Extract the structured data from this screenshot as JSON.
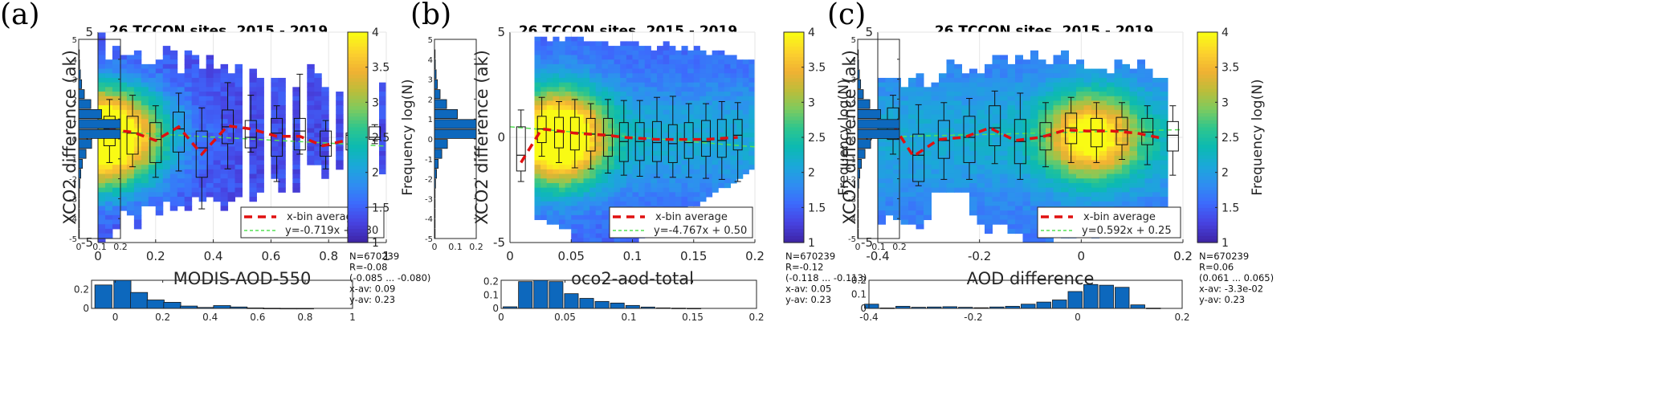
{
  "figure": {
    "colormap": [
      "#3e26a8",
      "#4743e2",
      "#3d6afd",
      "#2f8ef1",
      "#1ba8d9",
      "#0cbab2",
      "#2dc58e",
      "#7ccb5f",
      "#bcbd3a",
      "#f0b133",
      "#fcd12e",
      "#f9fb14"
    ],
    "bar_color": "#0d68bd",
    "avg_line_color": "#e01010",
    "fit_line_color": "#55e055"
  },
  "chart_data": [
    {
      "panel_label": "(a)",
      "type": "heatmap",
      "title": "26 TCCON sites, 2015 - 2019",
      "xlabel": "MODIS-AOD-550",
      "ylabel": "XCO2 difference (ak)",
      "xlim": [
        0,
        1
      ],
      "ylim": [
        -5,
        5
      ],
      "xticks": [
        "0",
        "0.2",
        "0.4",
        "0.6",
        "0.8",
        "1"
      ],
      "yticks": [
        "-5",
        "0",
        "5"
      ],
      "grid": true,
      "colorbar": {
        "label": "Frequency log(N)",
        "range": [
          1,
          4
        ],
        "ticks": [
          "1",
          "1.5",
          "2",
          "2.5",
          "3",
          "3.5",
          "4"
        ]
      },
      "legend": {
        "placement": "bottom-right",
        "entries": [
          "x-bin average",
          "y=-0.719x + 0.30"
        ]
      },
      "fit": {
        "slope": -0.719,
        "intercept": 0.3
      },
      "x_bin_average": {
        "x": [
          0.04,
          0.12,
          0.2,
          0.28,
          0.36,
          0.45,
          0.53,
          0.62,
          0.7,
          0.78,
          0.86,
          0.93
        ],
        "y": [
          0.35,
          0.25,
          -0.15,
          0.5,
          -0.8,
          0.55,
          0.4,
          0.05,
          0.05,
          -0.4,
          -0.15,
          0.15
        ]
      },
      "boxes": [
        {
          "x": 0.04,
          "wlo": -1.2,
          "q1": -0.4,
          "med": 0.4,
          "q3": 1.0,
          "whi": 1.8
        },
        {
          "x": 0.12,
          "wlo": -1.4,
          "q1": -0.8,
          "med": 0.2,
          "q3": 1.0,
          "whi": 2.0
        },
        {
          "x": 0.2,
          "wlo": -1.9,
          "q1": -1.2,
          "med": -0.1,
          "q3": 0.7,
          "whi": 1.5
        },
        {
          "x": 0.28,
          "wlo": -1.6,
          "q1": -0.7,
          "med": 0.4,
          "q3": 1.2,
          "whi": 2.1
        },
        {
          "x": 0.36,
          "wlo": -3.4,
          "q1": -1.9,
          "med": -0.5,
          "q3": 0.3,
          "whi": 1.4
        },
        {
          "x": 0.45,
          "wlo": -1.5,
          "q1": -0.3,
          "med": 0.5,
          "q3": 1.3,
          "whi": 2.6
        },
        {
          "x": 0.53,
          "wlo": -0.7,
          "q1": -0.5,
          "med": 0.0,
          "q3": 0.8,
          "whi": 2.0
        },
        {
          "x": 0.62,
          "wlo": -2.1,
          "q1": -0.9,
          "med": 0.2,
          "q3": 0.9,
          "whi": 1.5
        },
        {
          "x": 0.7,
          "wlo": -0.8,
          "q1": -0.6,
          "med": 0.3,
          "q3": 0.9,
          "whi": 3.0
        },
        {
          "x": 0.79,
          "wlo": -1.5,
          "q1": -0.9,
          "med": -0.4,
          "q3": 0.3,
          "whi": 0.8
        },
        {
          "x": 0.88,
          "wlo": -1.3,
          "q1": -0.6,
          "med": 0.1,
          "q3": 0.2,
          "whi": 1.1
        },
        {
          "x": 0.96,
          "wlo": -0.3,
          "q1": -0.1,
          "med": 0.0,
          "q3": 0.5,
          "whi": 0.6
        }
      ],
      "y_hist": {
        "bins": [
          4.5,
          3.5,
          2.5,
          1.5,
          0.5,
          -0.5,
          -1.5,
          -2.5,
          -3.5,
          -4.5,
          3.75,
          2.75,
          1.75,
          0.75,
          -0.25,
          -1.25,
          -2.25,
          -3.25,
          -4.25,
          4.25
        ],
        "y": [
          4.25,
          3.75,
          3.25,
          2.75,
          2.25,
          1.75,
          1.25,
          0.75,
          0.25,
          -0.25,
          -0.75,
          -1.25,
          -1.75,
          -2.25,
          -2.75,
          -3.25,
          -3.75,
          -4.25,
          -4.75
        ],
        "values": [
          0.002,
          0.004,
          0.008,
          0.014,
          0.027,
          0.058,
          0.11,
          0.2,
          0.2,
          0.062,
          0.035,
          0.018,
          0.01,
          0.005,
          0.002,
          0.001,
          0.001,
          0.0005,
          0.0
        ],
        "xlim": [
          0,
          0.2
        ],
        "xticks": [
          "0",
          "0.1",
          "0.2"
        ],
        "yticks": [
          "5",
          "4",
          "3",
          "2",
          "1",
          "0",
          "-1",
          "-2",
          "-3",
          "-4",
          "-5"
        ]
      },
      "x_hist": {
        "x": [
          -0.05,
          0.03,
          0.1,
          0.17,
          0.24,
          0.31,
          0.38,
          0.45,
          0.52,
          0.59,
          0.66,
          0.73,
          0.8,
          0.87,
          0.94
        ],
        "values": [
          0.25,
          0.3,
          0.17,
          0.09,
          0.065,
          0.025,
          0.01,
          0.03,
          0.015,
          0.005,
          0.002,
          0.001,
          0.001,
          0.0,
          0.0
        ],
        "xlim": [
          -0.1,
          1
        ],
        "ylim": [
          0,
          0.3
        ],
        "xticks": [
          "0",
          "0.2",
          "0.4",
          "0.6",
          "0.8",
          "1"
        ],
        "yticks": [
          "0",
          "0.2"
        ]
      },
      "stats": [
        "N=670239",
        "R=-0.08",
        "(-0.085 ... -0.080)",
        "x-av: 0.09",
        "y-av: 0.23"
      ]
    },
    {
      "panel_label": "(b)",
      "type": "heatmap",
      "title": "26 TCCON sites, 2015 - 2019",
      "xlabel": "oco2-aod-total",
      "ylabel": "XCO2 difference (ak)",
      "xlim": [
        0,
        0.2
      ],
      "ylim": [
        -5,
        5
      ],
      "xticks": [
        "0",
        "0.05",
        "0.1",
        "0.15",
        "0.2"
      ],
      "yticks": [
        "-5",
        "0",
        "5"
      ],
      "grid": true,
      "colorbar": {
        "label": "Frequency log(N)",
        "range": [
          1,
          4
        ],
        "ticks": [
          "1",
          "1.5",
          "2",
          "2.5",
          "3",
          "3.5",
          "4"
        ]
      },
      "legend": {
        "placement": "bottom-right",
        "entries": [
          "x-bin average",
          "y=-4.767x + 0.50"
        ]
      },
      "fit": {
        "slope": -4.767,
        "intercept": 0.5
      },
      "x_bin_average": {
        "x": [
          0.009,
          0.026,
          0.04,
          0.053,
          0.066,
          0.08,
          0.093,
          0.106,
          0.12,
          0.133,
          0.146,
          0.16,
          0.173,
          0.186
        ],
        "y": [
          -1.2,
          0.4,
          0.3,
          0.2,
          0.15,
          0.1,
          0.0,
          -0.05,
          -0.1,
          -0.1,
          -0.1,
          -0.1,
          -0.05,
          0.0
        ]
      },
      "boxes": [
        {
          "x": 0.009,
          "wlo": -2.1,
          "q1": -1.6,
          "med": -0.85,
          "q3": 0.5,
          "whi": 1.3
        },
        {
          "x": 0.026,
          "wlo": -0.9,
          "q1": -0.25,
          "med": 0.4,
          "q3": 1.0,
          "whi": 1.9
        },
        {
          "x": 0.04,
          "wlo": -1.2,
          "q1": -0.5,
          "med": 0.25,
          "q3": 0.95,
          "whi": 1.7
        },
        {
          "x": 0.053,
          "wlo": -1.45,
          "q1": -0.6,
          "med": 0.2,
          "q3": 0.95,
          "whi": 1.8
        },
        {
          "x": 0.066,
          "wlo": -1.5,
          "q1": -0.65,
          "med": 0.15,
          "q3": 0.9,
          "whi": 1.6
        },
        {
          "x": 0.08,
          "wlo": -1.7,
          "q1": -0.9,
          "med": 0.1,
          "q3": 0.9,
          "whi": 1.8
        },
        {
          "x": 0.093,
          "wlo": -1.8,
          "q1": -1.15,
          "med": -0.2,
          "q3": 0.7,
          "whi": 1.75
        },
        {
          "x": 0.106,
          "wlo": -1.85,
          "q1": -1.1,
          "med": -0.2,
          "q3": 0.7,
          "whi": 1.75
        },
        {
          "x": 0.12,
          "wlo": -1.9,
          "q1": -1.15,
          "med": -0.25,
          "q3": 0.75,
          "whi": 1.9
        },
        {
          "x": 0.133,
          "wlo": -1.9,
          "q1": -1.2,
          "med": -0.3,
          "q3": 0.6,
          "whi": 1.95
        },
        {
          "x": 0.146,
          "wlo": -1.9,
          "q1": -1.0,
          "med": -0.25,
          "q3": 0.7,
          "whi": 1.6
        },
        {
          "x": 0.16,
          "wlo": -1.95,
          "q1": -0.9,
          "med": -0.2,
          "q3": 0.8,
          "whi": 1.6
        },
        {
          "x": 0.173,
          "wlo": -2.0,
          "q1": -0.95,
          "med": -0.15,
          "q3": 0.85,
          "whi": 1.7
        },
        {
          "x": 0.186,
          "wlo": -2.1,
          "q1": -0.6,
          "med": 0.1,
          "q3": 0.85,
          "whi": 1.65
        }
      ],
      "y_hist": {
        "y": [
          4.25,
          3.75,
          3.25,
          2.75,
          2.25,
          1.75,
          1.25,
          0.75,
          0.25,
          -0.25,
          -0.75,
          -1.25,
          -1.75,
          -2.25,
          -2.75,
          -3.25,
          -3.75,
          -4.25,
          -4.75
        ],
        "values": [
          0.002,
          0.004,
          0.008,
          0.014,
          0.027,
          0.058,
          0.11,
          0.2,
          0.2,
          0.062,
          0.035,
          0.018,
          0.01,
          0.005,
          0.002,
          0.001,
          0.001,
          0.0005,
          0.0
        ],
        "xlim": [
          0,
          0.2
        ],
        "xticks": [
          "0",
          "0.1",
          "0.2"
        ],
        "yticks": [
          "5",
          "4",
          "3",
          "2",
          "1",
          "0",
          "-1",
          "-2",
          "-3",
          "-4",
          "-5"
        ]
      },
      "x_hist": {
        "x": [
          0.007,
          0.019,
          0.031,
          0.043,
          0.055,
          0.067,
          0.079,
          0.091,
          0.103,
          0.115,
          0.127,
          0.139,
          0.151,
          0.163,
          0.175,
          0.187
        ],
        "values": [
          0.012,
          0.2,
          0.21,
          0.2,
          0.11,
          0.075,
          0.052,
          0.04,
          0.022,
          0.01,
          0.004,
          0.002,
          0.001,
          0.0,
          0.0,
          0.0
        ],
        "xlim": [
          0,
          0.2
        ],
        "ylim": [
          0,
          0.21
        ],
        "xticks": [
          "0",
          "0.05",
          "0.1",
          "0.15",
          "0.2"
        ],
        "yticks": [
          "0",
          "0.1",
          "0.2"
        ]
      },
      "stats": [
        "N=670239",
        "R=-0.12",
        "(-0.118 ... -0.113)",
        "x-av: 0.05",
        "y-av: 0.23"
      ]
    },
    {
      "panel_label": "(c)",
      "type": "heatmap",
      "title": "26 TCCON sites, 2015 - 2019",
      "xlabel": "AOD difference",
      "ylabel": "XCO2 difference (ak)",
      "xlim": [
        -0.4,
        0.2
      ],
      "ylim": [
        -5,
        5
      ],
      "xticks": [
        "-0.4",
        "-0.2",
        "0",
        "0.2"
      ],
      "yticks": [
        "-5",
        "0",
        "5"
      ],
      "grid": true,
      "colorbar": {
        "label": "Frequency log(N)",
        "range": [
          1,
          4
        ],
        "ticks": [
          "1",
          "1.5",
          "2",
          "2.5",
          "3",
          "3.5",
          "4"
        ]
      },
      "legend": {
        "placement": "bottom-right",
        "entries": [
          "x-bin average",
          "y=0.592x + 0.25"
        ]
      },
      "fit": {
        "slope": 0.592,
        "intercept": 0.25
      },
      "x_bin_average": {
        "x": [
          -0.37,
          -0.33,
          -0.28,
          -0.23,
          -0.18,
          -0.13,
          -0.08,
          -0.03,
          0.01,
          0.06,
          0.11,
          0.16
        ],
        "y": [
          0.6,
          -0.9,
          -0.1,
          0.0,
          0.45,
          -0.15,
          0.0,
          0.35,
          0.3,
          0.3,
          0.2,
          -0.05
        ]
      },
      "boxes": [
        {
          "x": -0.37,
          "wlo": -0.8,
          "q1": -0.1,
          "med": 0.6,
          "q3": 1.4,
          "whi": 2.0
        },
        {
          "x": -0.32,
          "wlo": -2.3,
          "q1": -2.1,
          "med": -0.85,
          "q3": 0.15,
          "whi": 1.55
        },
        {
          "x": -0.27,
          "wlo": -2.0,
          "q1": -1.0,
          "med": -0.15,
          "q3": 0.8,
          "whi": 1.65
        },
        {
          "x": -0.22,
          "wlo": -2.0,
          "q1": -1.2,
          "med": 0.0,
          "q3": 1.0,
          "whi": 1.85
        },
        {
          "x": -0.17,
          "wlo": -1.25,
          "q1": -0.4,
          "med": 0.45,
          "q3": 1.5,
          "whi": 2.2
        },
        {
          "x": -0.12,
          "wlo": -2.0,
          "q1": -1.25,
          "med": -0.2,
          "q3": 0.85,
          "whi": 2.1
        },
        {
          "x": -0.07,
          "wlo": -1.4,
          "q1": -0.6,
          "med": 0.05,
          "q3": 0.7,
          "whi": 1.65
        },
        {
          "x": -0.02,
          "wlo": -1.2,
          "q1": -0.3,
          "med": 0.45,
          "q3": 1.15,
          "whi": 1.9
        },
        {
          "x": 0.03,
          "wlo": -1.2,
          "q1": -0.45,
          "med": 0.35,
          "q3": 0.9,
          "whi": 1.65
        },
        {
          "x": 0.08,
          "wlo": -1.05,
          "q1": -0.35,
          "med": 0.35,
          "q3": 0.95,
          "whi": 1.65
        },
        {
          "x": 0.13,
          "wlo": -1.3,
          "q1": -0.35,
          "med": 0.25,
          "q3": 0.9,
          "whi": 1.5
        },
        {
          "x": 0.18,
          "wlo": -1.8,
          "q1": -0.65,
          "med": 0.1,
          "q3": 0.75,
          "whi": 1.5
        }
      ],
      "y_hist": {
        "y": [
          4.25,
          3.75,
          3.25,
          2.75,
          2.25,
          1.75,
          1.25,
          0.75,
          0.25,
          -0.25,
          -0.75,
          -1.25,
          -1.75,
          -2.25,
          -2.75,
          -3.25,
          -3.75,
          -4.25,
          -4.75
        ],
        "values": [
          0.002,
          0.004,
          0.008,
          0.014,
          0.027,
          0.058,
          0.11,
          0.2,
          0.2,
          0.062,
          0.035,
          0.018,
          0.01,
          0.005,
          0.002,
          0.001,
          0.001,
          0.0005,
          0.0
        ],
        "xlim": [
          0,
          0.2
        ],
        "xticks": [
          "0",
          "0.1",
          "0.2"
        ],
        "yticks": [
          "5",
          "4",
          "3",
          "2",
          "1",
          "0",
          "-1",
          "-2",
          "-3",
          "-4",
          "-5"
        ]
      },
      "x_hist": {
        "x": [
          -0.395,
          -0.365,
          -0.335,
          -0.305,
          -0.275,
          -0.245,
          -0.215,
          -0.185,
          -0.155,
          -0.125,
          -0.095,
          -0.065,
          -0.035,
          -0.005,
          0.025,
          0.055,
          0.085,
          0.115,
          0.145,
          0.175
        ],
        "values": [
          0.03,
          0.003,
          0.015,
          0.008,
          0.01,
          0.012,
          0.008,
          0.005,
          0.01,
          0.015,
          0.03,
          0.045,
          0.06,
          0.12,
          0.17,
          0.165,
          0.15,
          0.025,
          0.002,
          0.0
        ],
        "xlim": [
          -0.4,
          0.2
        ],
        "ylim": [
          0,
          0.2
        ],
        "xticks": [
          "-0.4",
          "-0.2",
          "0",
          "0.2"
        ],
        "yticks": [
          "0",
          "0.1",
          "0.2"
        ]
      },
      "stats": [
        "N=670239",
        "R=0.06",
        "(0.061 ... 0.065)",
        "x-av: -3.3e-02",
        "y-av: 0.23"
      ]
    }
  ]
}
